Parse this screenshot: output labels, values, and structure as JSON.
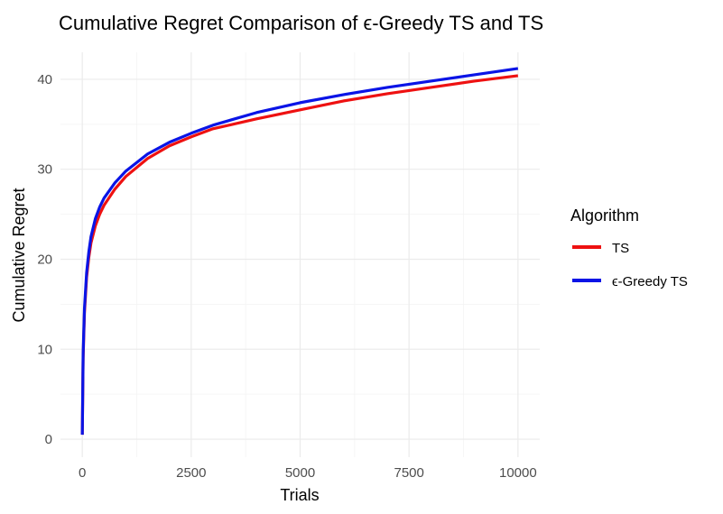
{
  "chart_data": {
    "type": "line",
    "title": "Cumulative Regret Comparison of ϵ-Greedy TS and TS",
    "xlabel": "Trials",
    "ylabel": "Cumulative Regret",
    "xlim": [
      -500,
      10500
    ],
    "ylim": [
      -2,
      43
    ],
    "x_ticks": [
      0,
      2500,
      5000,
      7500,
      10000
    ],
    "x_tick_labels": [
      "0",
      "2500",
      "5000",
      "7500",
      "10000"
    ],
    "y_ticks": [
      0,
      10,
      20,
      30,
      40
    ],
    "y_tick_labels": [
      "0",
      "10",
      "20",
      "30",
      "40"
    ],
    "grid": true,
    "legend": {
      "title": "Algorithm",
      "position": "right"
    },
    "series": [
      {
        "name": "TS",
        "color": "#ee1111",
        "x": [
          1,
          20,
          50,
          100,
          150,
          200,
          300,
          400,
          500,
          750,
          1000,
          1500,
          2000,
          2500,
          3000,
          4000,
          5000,
          6000,
          7000,
          8000,
          9000,
          10000
        ],
        "y": [
          0.5,
          9,
          14,
          18,
          20.2,
          21.8,
          23.7,
          25.0,
          26.0,
          27.8,
          29.2,
          31.2,
          32.6,
          33.6,
          34.5,
          35.6,
          36.6,
          37.6,
          38.4,
          39.1,
          39.8,
          40.4
        ]
      },
      {
        "name": "ϵ-Greedy TS",
        "color": "#0a14e6",
        "x": [
          1,
          20,
          50,
          100,
          150,
          200,
          300,
          400,
          500,
          750,
          1000,
          1500,
          2000,
          2500,
          3000,
          4000,
          5000,
          6000,
          7000,
          8000,
          9000,
          10000
        ],
        "y": [
          0.5,
          9.5,
          14.5,
          18.5,
          20.8,
          22.5,
          24.5,
          25.8,
          26.8,
          28.5,
          29.8,
          31.7,
          33.0,
          34.0,
          34.9,
          36.3,
          37.4,
          38.3,
          39.1,
          39.8,
          40.5,
          41.2
        ]
      }
    ]
  }
}
